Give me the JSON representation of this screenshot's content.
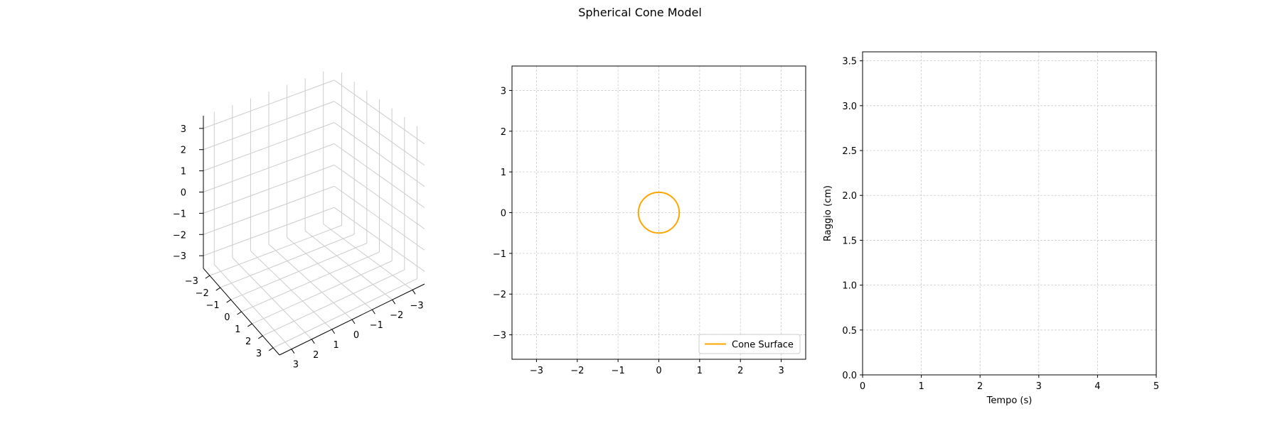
{
  "figure": {
    "title": "Spherical Cone Model"
  },
  "chart_data": [
    {
      "type": "scatter",
      "projection": "3d",
      "xticks": [
        "−3",
        "−2",
        "−1",
        "0",
        "1",
        "2",
        "3"
      ],
      "yticks": [
        "3",
        "2",
        "1",
        "0",
        "−1",
        "−2",
        "−3"
      ],
      "zticks": [
        "3",
        "2",
        "1",
        "0",
        "−1",
        "−2",
        "−3"
      ],
      "xlim": [
        -3.6,
        3.6
      ],
      "ylim": [
        -3.6,
        3.6
      ],
      "zlim": [
        -3.6,
        3.6
      ],
      "grid": true,
      "series": []
    },
    {
      "type": "line",
      "xticks": [
        "−3",
        "−2",
        "−1",
        "0",
        "1",
        "2",
        "3"
      ],
      "yticks": [
        "3",
        "2",
        "1",
        "0",
        "−1",
        "−2",
        "−3"
      ],
      "xlim": [
        -3.6,
        3.6
      ],
      "ylim": [
        -3.6,
        3.6
      ],
      "grid": true,
      "legend_position": "lower-right",
      "series": [
        {
          "name": "Cone Surface",
          "color": "#ffa500",
          "shape": "circle",
          "center": [
            0,
            0
          ],
          "radius": 0.5
        }
      ]
    },
    {
      "type": "line",
      "xlabel": "Tempo (s)",
      "ylabel": "Raggio (cm)",
      "xticks": [
        "0",
        "1",
        "2",
        "3",
        "4",
        "5"
      ],
      "yticks": [
        "0.0",
        "0.5",
        "1.0",
        "1.5",
        "2.0",
        "2.5",
        "3.0",
        "3.5"
      ],
      "xlim": [
        0,
        5
      ],
      "ylim": [
        0,
        3.6
      ],
      "grid": true,
      "series": []
    }
  ]
}
